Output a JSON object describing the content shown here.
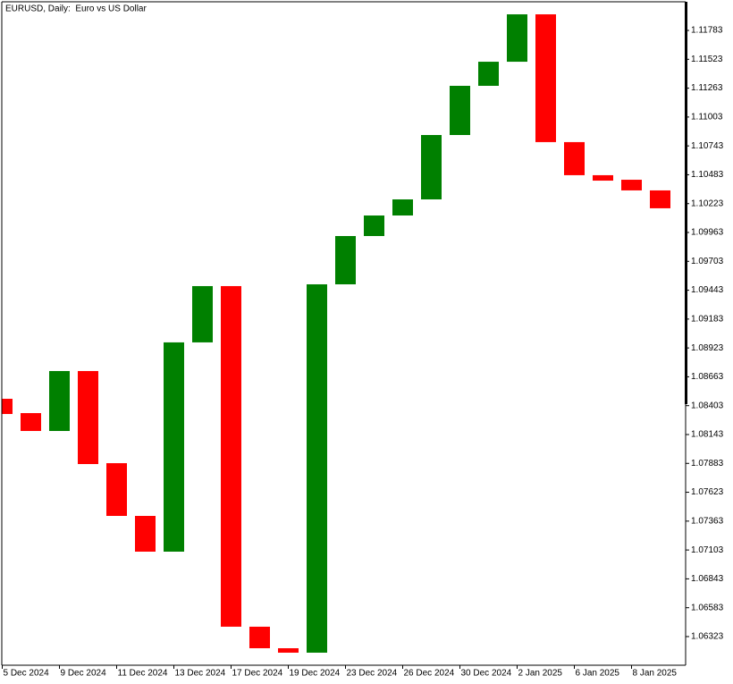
{
  "chart_data": {
    "type": "candlestick",
    "title": "EURUSD, Daily:  Euro vs US Dollar",
    "categories": [
      "5 Dec 2024",
      null,
      "9 Dec 2024",
      null,
      "11 Dec 2024",
      null,
      "13 Dec 2024",
      null,
      "17 Dec 2024",
      null,
      "19 Dec 2024",
      null,
      "23 Dec 2024",
      null,
      "26 Dec 2024",
      null,
      "30 Dec 2024",
      null,
      "2 Jan 2025",
      null,
      "6 Jan 2025",
      null,
      "8 Jan 2025",
      null
    ],
    "open": [
      1.08465,
      1.08336,
      1.08175,
      1.08715,
      1.07885,
      1.0741,
      1.07088,
      1.08973,
      1.0948,
      1.06412,
      1.06218,
      1.06178,
      1.09496,
      1.09931,
      1.10116,
      1.10261,
      1.10841,
      1.11284,
      1.11501,
      1.11928,
      1.10777,
      1.10479,
      1.10438,
      1.10342
    ],
    "close": [
      1.08328,
      1.08175,
      1.08715,
      1.07877,
      1.0741,
      1.07088,
      1.08973,
      1.0948,
      1.06412,
      1.06218,
      1.06178,
      1.09496,
      1.09931,
      1.10116,
      1.10261,
      1.10841,
      1.11284,
      1.11501,
      1.11928,
      1.10777,
      1.10479,
      1.1043,
      1.10342,
      1.10181
    ],
    "up_color": "#008000",
    "down_color": "#ff0000",
    "ylim": [
      1.06065,
      1.12041
    ],
    "yticks": [
      1.06323,
      1.06583,
      1.06843,
      1.07103,
      1.07363,
      1.07623,
      1.07883,
      1.08143,
      1.08403,
      1.08663,
      1.08923,
      1.09183,
      1.09443,
      1.09703,
      1.09963,
      1.10223,
      1.10483,
      1.10743,
      1.11003,
      1.11263,
      1.11523,
      1.11783
    ]
  }
}
